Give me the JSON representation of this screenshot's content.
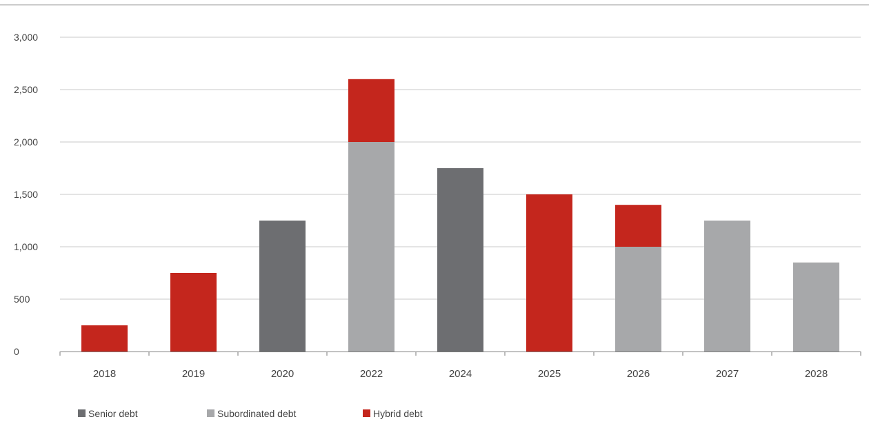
{
  "chart_data": {
    "type": "bar",
    "stacked": true,
    "title": "",
    "xlabel": "",
    "ylabel": "",
    "ylim": [
      0,
      3000
    ],
    "y_ticks": [
      0,
      500,
      1000,
      1500,
      2000,
      2500,
      3000
    ],
    "y_tick_labels": [
      "0",
      "500",
      "1,000",
      "1,500",
      "2,000",
      "2,500",
      "3,000"
    ],
    "grid": true,
    "legend_position": "bottom-left",
    "categories": [
      "2018",
      "2019",
      "2020",
      "2022",
      "2024",
      "2025",
      "2026",
      "2027",
      "2028"
    ],
    "series": [
      {
        "name": "Senior debt",
        "color": "#6d6e71",
        "values": [
          0,
          0,
          1250,
          0,
          1750,
          0,
          0,
          0,
          0
        ]
      },
      {
        "name": "Subordinated debt",
        "color": "#a7a8aa",
        "values": [
          0,
          0,
          0,
          2000,
          0,
          0,
          1000,
          1250,
          850
        ]
      },
      {
        "name": "Hybrid debt",
        "color": "#c4261d",
        "values": [
          250,
          750,
          0,
          600,
          0,
          1500,
          400,
          0,
          0
        ]
      }
    ]
  }
}
